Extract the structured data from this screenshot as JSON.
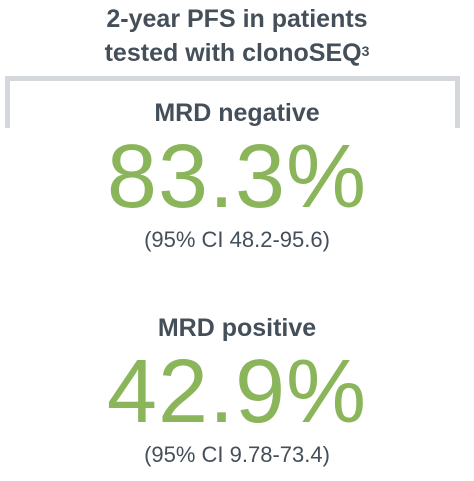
{
  "header": {
    "line1": "2-year PFS in patients",
    "line2": "tested with clonoSEQ",
    "superscript": "3"
  },
  "colors": {
    "accent_green": "#8bb55a",
    "text_dark": "#454f59",
    "bracket_gray": "#d4d7db"
  },
  "mrd_negative": {
    "label": "MRD negative",
    "value": "83.3%",
    "ci": "(95% CI 48.2-95.6)"
  },
  "mrd_positive": {
    "label": "MRD positive",
    "value": "42.9%",
    "ci": "(95% CI 9.78-73.4)"
  }
}
